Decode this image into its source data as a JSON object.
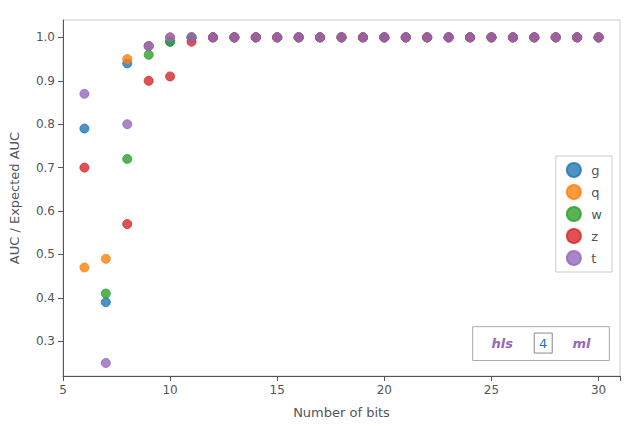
{
  "chart_data": {
    "type": "scatter",
    "xlabel": "Number of bits",
    "ylabel": "AUC / Expected AUC",
    "series": [
      {
        "name": "g",
        "color": "#1f77b4",
        "x": [
          6,
          7,
          8,
          9,
          10,
          11,
          12,
          13,
          14,
          15,
          16,
          17,
          18,
          19,
          20,
          21,
          22,
          23,
          24,
          25,
          26,
          27,
          28,
          29,
          30
        ],
        "values": [
          0.79,
          0.39,
          0.94,
          0.98,
          0.99,
          1.0,
          1.0,
          1.0,
          1.0,
          1.0,
          1.0,
          1.0,
          1.0,
          1.0,
          1.0,
          1.0,
          1.0,
          1.0,
          1.0,
          1.0,
          1.0,
          1.0,
          1.0,
          1.0,
          1.0
        ]
      },
      {
        "name": "q",
        "color": "#ff7f0e",
        "x": [
          6,
          7,
          8,
          9,
          10,
          11,
          12,
          13,
          14,
          15,
          16,
          17,
          18,
          19,
          20,
          21,
          22,
          23,
          24,
          25,
          26,
          27,
          28,
          29,
          30
        ],
        "values": [
          0.47,
          0.49,
          0.95,
          0.98,
          1.0,
          1.0,
          1.0,
          1.0,
          1.0,
          1.0,
          1.0,
          1.0,
          1.0,
          1.0,
          1.0,
          1.0,
          1.0,
          1.0,
          1.0,
          1.0,
          1.0,
          1.0,
          1.0,
          1.0,
          1.0
        ]
      },
      {
        "name": "w",
        "color": "#2ca02c",
        "x": [
          7,
          8,
          9,
          10,
          11,
          12,
          13,
          14,
          15,
          16,
          17,
          18,
          19,
          20,
          21,
          22,
          23,
          24,
          25,
          26,
          27,
          28,
          29,
          30
        ],
        "values": [
          0.41,
          0.72,
          0.96,
          0.99,
          1.0,
          1.0,
          1.0,
          1.0,
          1.0,
          1.0,
          1.0,
          1.0,
          1.0,
          1.0,
          1.0,
          1.0,
          1.0,
          1.0,
          1.0,
          1.0,
          1.0,
          1.0,
          1.0,
          1.0
        ]
      },
      {
        "name": "z",
        "color": "#d62728",
        "x": [
          6,
          8,
          9,
          10,
          11,
          12,
          13,
          14,
          15,
          16,
          17,
          18,
          19,
          20,
          21,
          22,
          23,
          24,
          25,
          26,
          27,
          28,
          29,
          30
        ],
        "values": [
          0.7,
          0.57,
          0.9,
          0.91,
          0.99,
          1.0,
          1.0,
          1.0,
          1.0,
          1.0,
          1.0,
          1.0,
          1.0,
          1.0,
          1.0,
          1.0,
          1.0,
          1.0,
          1.0,
          1.0,
          1.0,
          1.0,
          1.0,
          1.0
        ]
      },
      {
        "name": "t",
        "color": "#9467bd",
        "x": [
          6,
          7,
          8,
          9,
          10,
          11,
          12,
          13,
          14,
          15,
          16,
          17,
          18,
          19,
          20,
          21,
          22,
          23,
          24,
          25,
          26,
          27,
          28,
          29,
          30
        ],
        "values": [
          0.87,
          0.25,
          0.8,
          0.98,
          1.0,
          1.0,
          1.0,
          1.0,
          1.0,
          1.0,
          1.0,
          1.0,
          1.0,
          1.0,
          1.0,
          1.0,
          1.0,
          1.0,
          1.0,
          1.0,
          1.0,
          1.0,
          1.0,
          1.0,
          1.0
        ]
      }
    ],
    "xlim": [
      5,
      31
    ],
    "ylim": [
      0.22,
      1.04
    ],
    "xticks": [
      5,
      10,
      15,
      20,
      25,
      30
    ],
    "yticks": [
      0.3,
      0.4,
      0.5,
      0.6,
      0.7,
      0.8,
      0.9,
      {
        "value": 1.0,
        "label": "1.0"
      }
    ],
    "grid": false,
    "legend": "right",
    "annotations": [
      {
        "text": "hls",
        "color": "#9467bd"
      },
      {
        "text": "4",
        "color": "#1f77b4"
      },
      {
        "text": "ml",
        "color": "#9467bd"
      }
    ]
  }
}
